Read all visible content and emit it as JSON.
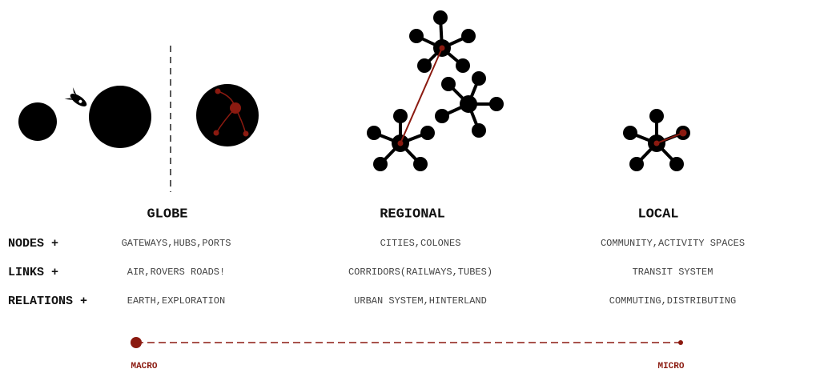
{
  "columns": [
    "GLOBE",
    "REGIONAL",
    "LOCAL"
  ],
  "rows": [
    {
      "label": "NODES +",
      "cells": [
        "GATEWAYS,HUBS,PORTS",
        "CITIES,COLONES",
        "COMMUNITY,ACTIVITY SPACES"
      ]
    },
    {
      "label": "LINKS +",
      "cells": [
        "AIR,ROVERS ROADS!",
        "CORRIDORS(RAILWAYS,TUBES)",
        "TRANSIT SYSTEM"
      ]
    },
    {
      "label": "RELATIONS +",
      "cells": [
        "EARTH,EXPLORATION",
        "URBAN SYSTEM,HINTERLAND",
        "COMMUTING,DISTRIBUTING"
      ]
    }
  ],
  "scale": {
    "start": "MACRO",
    "end": "MICRO"
  }
}
